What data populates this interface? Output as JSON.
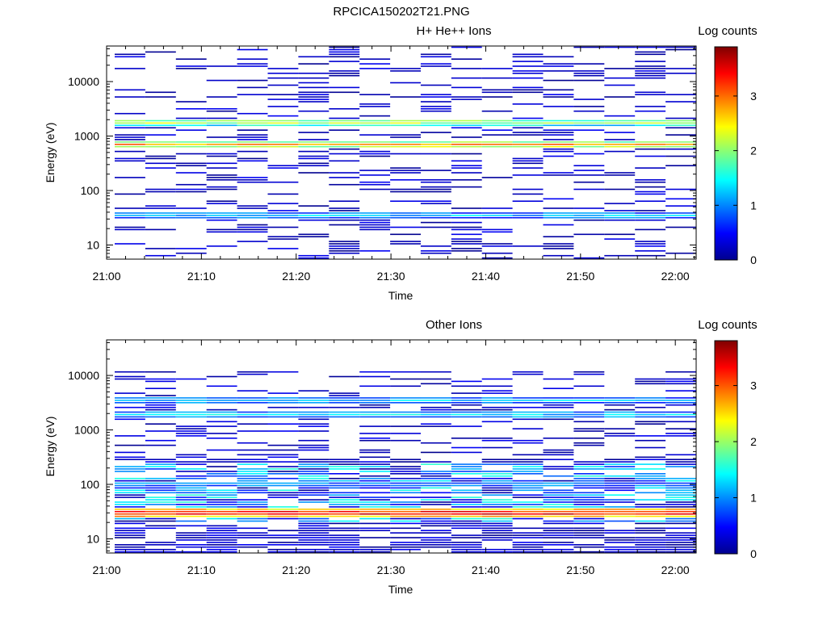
{
  "figure": {
    "title": "RPCICA150202T21.PNG"
  },
  "colorbar": {
    "stops": [
      "#00008f",
      "#0000ff",
      "#007fff",
      "#00ffff",
      "#7fff7f",
      "#ffff00",
      "#ff7f00",
      "#ff0000",
      "#7f0000"
    ]
  },
  "chart_data": [
    {
      "type": "heatmap",
      "title": "H+ He++ Ions",
      "xlabel": "Time",
      "ylabel": "Energy (eV)",
      "x_ticks": [
        "21:00",
        "21:10",
        "21:20",
        "21:30",
        "21:40",
        "21:50",
        "22:00"
      ],
      "y_ticks": [
        "10",
        "100",
        "1000",
        "10000"
      ],
      "y_scale": "log",
      "y_range": [
        5.5,
        45000
      ],
      "x_range_minutes": [
        0,
        62.2
      ],
      "colorbar": {
        "label": "Log counts",
        "ticks": [
          "0",
          "1",
          "2",
          "3"
        ],
        "range": [
          0,
          3.9
        ]
      },
      "features": [
        {
          "description": "band",
          "energy": 1800,
          "value": 2.3
        },
        {
          "description": "band",
          "energy": 700,
          "value": 2.9
        },
        {
          "description": "band",
          "energy": 35,
          "value": 1.2
        }
      ]
    },
    {
      "type": "heatmap",
      "title": "Other Ions",
      "xlabel": "Time",
      "ylabel": "Energy (eV)",
      "x_ticks": [
        "21:00",
        "21:10",
        "21:20",
        "21:30",
        "21:40",
        "21:50",
        "22:00"
      ],
      "y_ticks": [
        "10",
        "100",
        "1000",
        "10000"
      ],
      "y_scale": "log",
      "y_range": [
        5.5,
        45000
      ],
      "x_range_minutes": [
        0,
        62.2
      ],
      "colorbar": {
        "label": "Log counts",
        "ticks": [
          "0",
          "1",
          "2",
          "3"
        ],
        "range": [
          0,
          3.8
        ]
      },
      "features": [
        {
          "description": "band",
          "energy": 30,
          "value": 3.6
        },
        {
          "description": "band",
          "energy": 100,
          "value": 1.0
        },
        {
          "description": "band",
          "energy": 3500,
          "value": 1.2
        },
        {
          "description": "band",
          "energy": 1900,
          "value": 1.3
        }
      ]
    }
  ]
}
